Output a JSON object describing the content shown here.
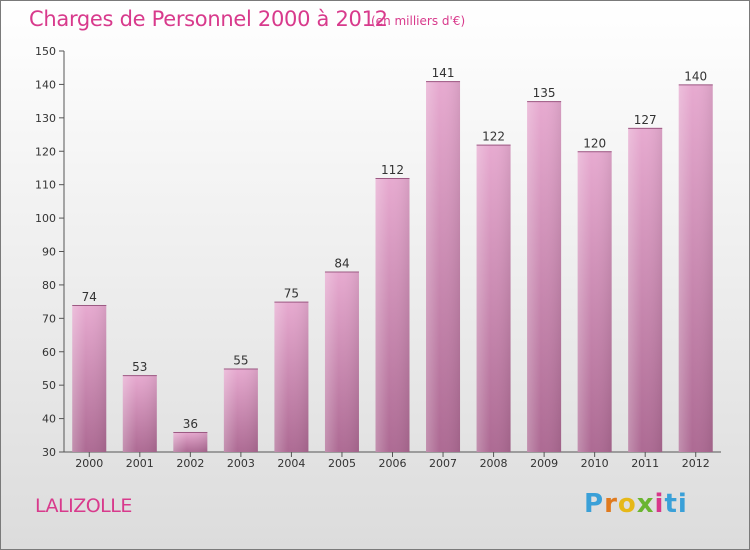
{
  "header": {
    "title": "Charges de Personnel 2000 à 2012",
    "subtitle": "(en milliers d'€)"
  },
  "commune": "LALIZOLLE",
  "logo": {
    "parts": [
      "P",
      "r",
      "o",
      "x",
      "i",
      "ti"
    ]
  },
  "colors": {
    "title": "#d83a8c",
    "bar_light": "#e4a6cd",
    "bar_dark": "#b16d96",
    "axis": "#555555"
  },
  "chart_data": {
    "type": "bar",
    "title": "Charges de Personnel 2000 à 2012",
    "subtitle": "(en milliers d'€)",
    "categories": [
      "2000",
      "2001",
      "2002",
      "2003",
      "2004",
      "2005",
      "2006",
      "2007",
      "2008",
      "2009",
      "2010",
      "2011",
      "2012"
    ],
    "values": [
      74,
      53,
      36,
      55,
      75,
      84,
      112,
      141,
      122,
      135,
      120,
      127,
      140
    ],
    "ylim": [
      30,
      150
    ],
    "yticks": [
      30,
      40,
      50,
      60,
      70,
      80,
      90,
      100,
      110,
      120,
      130,
      140,
      150
    ],
    "grid": false,
    "data_labels": true
  }
}
